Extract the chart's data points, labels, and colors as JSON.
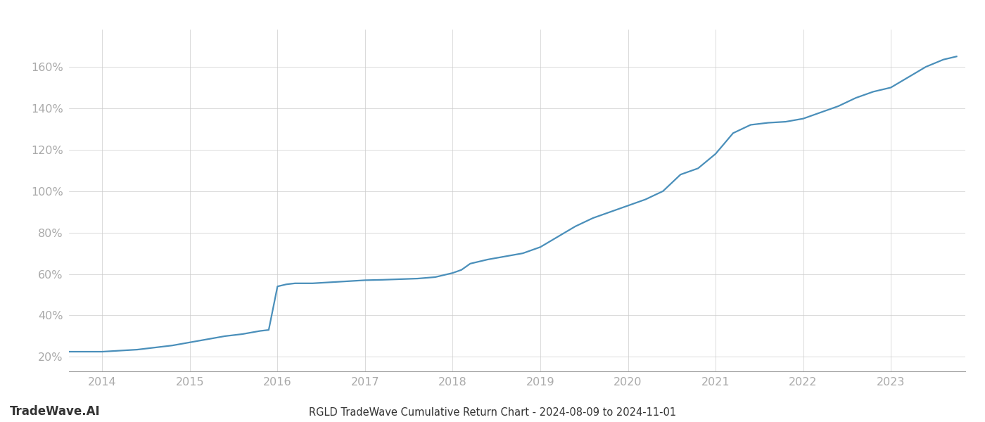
{
  "title": "RGLD TradeWave Cumulative Return Chart - 2024-08-09 to 2024-11-01",
  "watermark": "TradeWave.AI",
  "line_color": "#4a8fba",
  "background_color": "#ffffff",
  "grid_color": "#cccccc",
  "x_values": [
    2013.62,
    2013.75,
    2014.0,
    2014.2,
    2014.4,
    2014.6,
    2014.8,
    2015.0,
    2015.2,
    2015.4,
    2015.6,
    2015.8,
    2015.9,
    2016.0,
    2016.1,
    2016.2,
    2016.4,
    2016.6,
    2016.8,
    2017.0,
    2017.2,
    2017.4,
    2017.6,
    2017.8,
    2018.0,
    2018.1,
    2018.2,
    2018.4,
    2018.6,
    2018.8,
    2019.0,
    2019.2,
    2019.4,
    2019.6,
    2019.8,
    2020.0,
    2020.2,
    2020.4,
    2020.6,
    2020.8,
    2021.0,
    2021.2,
    2021.4,
    2021.6,
    2021.8,
    2022.0,
    2022.2,
    2022.4,
    2022.6,
    2022.8,
    2023.0,
    2023.2,
    2023.4,
    2023.6,
    2023.75
  ],
  "y_values": [
    22.5,
    22.5,
    22.5,
    23.0,
    23.5,
    24.5,
    25.5,
    27.0,
    28.5,
    30.0,
    31.0,
    32.5,
    33.0,
    54.0,
    55.0,
    55.5,
    55.5,
    56.0,
    56.5,
    57.0,
    57.2,
    57.5,
    57.8,
    58.5,
    60.5,
    62.0,
    65.0,
    67.0,
    68.5,
    70.0,
    73.0,
    78.0,
    83.0,
    87.0,
    90.0,
    93.0,
    96.0,
    100.0,
    108.0,
    111.0,
    118.0,
    128.0,
    132.0,
    133.0,
    133.5,
    135.0,
    138.0,
    141.0,
    145.0,
    148.0,
    150.0,
    155.0,
    160.0,
    163.5,
    165.0
  ],
  "yticks": [
    20,
    40,
    60,
    80,
    100,
    120,
    140,
    160
  ],
  "xticks": [
    2014,
    2015,
    2016,
    2017,
    2018,
    2019,
    2020,
    2021,
    2022,
    2023
  ],
  "xlim": [
    2013.62,
    2023.85
  ],
  "ylim": [
    13,
    178
  ],
  "title_fontsize": 10.5,
  "tick_fontsize": 11.5,
  "watermark_fontsize": 12,
  "line_width": 1.6,
  "tick_label_color": "#aaaaaa",
  "bottom_text_color": "#333333"
}
